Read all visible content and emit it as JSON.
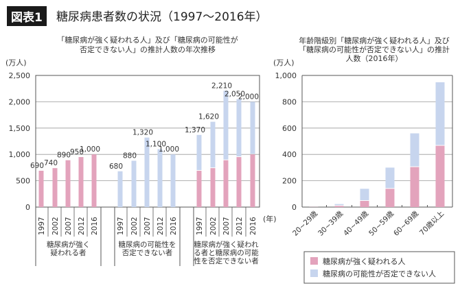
{
  "header": {
    "badge": "図表1",
    "title": "糖尿病患者数の状況（1997〜2016年）"
  },
  "colors": {
    "strong": "#e3a3bc",
    "possible": "#c7d5ee",
    "axis": "#555",
    "grid": "#999"
  },
  "chart_data": [
    {
      "type": "bar",
      "title_lines": [
        "「糖尿病が強く疑われる人」及び「糖尿病の可能性が",
        "否定できない人」の推計人数の年次推移"
      ],
      "ylabel": "(万人)",
      "xlabel": "(年)",
      "ylim": [
        0,
        2500
      ],
      "yticks": [
        "0",
        "500",
        "1,000",
        "1,500",
        "2,000",
        "2,500"
      ],
      "grid": true,
      "categories": [
        "1997",
        "2002",
        "2007",
        "2012",
        "2016"
      ],
      "groups": [
        {
          "label": "糖尿病が強く疑われる者",
          "label_lines": [
            "糖尿病が強く",
            "疑われる者"
          ],
          "series": [
            "strong"
          ],
          "values": [
            690,
            740,
            890,
            950,
            1000
          ],
          "data_labels": [
            "690",
            "740",
            "890",
            "950",
            "1,000"
          ]
        },
        {
          "label": "糖尿病の可能性を否定できない者",
          "label_lines": [
            "糖尿病の可能性を",
            "否定できない者"
          ],
          "series": [
            "possible"
          ],
          "values": [
            680,
            880,
            1320,
            1100,
            1000
          ],
          "data_labels": [
            "680",
            "880",
            "1,320",
            "1,100",
            "1,000"
          ]
        },
        {
          "label": "糖尿病が強く疑われる者と糖尿病の可能性を否定できない者",
          "label_lines": [
            "糖尿病が強く疑われ",
            "る者と糖尿病の可能",
            "性を否定できない者"
          ],
          "series": [
            "strong",
            "possible"
          ],
          "stacked_values": {
            "strong": [
              690,
              740,
              890,
              950,
              1000
            ],
            "possible": [
              680,
              880,
              1320,
              1100,
              1000
            ]
          },
          "data_labels": [
            "1,370",
            "1,620",
            "2,210",
            "2,050",
            "2,000"
          ]
        }
      ]
    },
    {
      "type": "bar",
      "stacked": true,
      "title_lines": [
        "年齢階級別「糖尿病が強く疑われる人」及び",
        "「糖尿病の可能性が否定できない人」の推計",
        "人数（2016年）"
      ],
      "ylabel": "(万人)",
      "ylim": [
        0,
        1000
      ],
      "yticks": [
        "0",
        "200",
        "400",
        "600",
        "800",
        "1,000"
      ],
      "grid": true,
      "categories": [
        "20~29歳",
        "30~39歳",
        "40~49歳",
        "50~59歳",
        "60~69歳",
        "70歳以上"
      ],
      "series": [
        {
          "name": "糖尿病が強く疑われる人",
          "key": "strong",
          "values": [
            1,
            9,
            47,
            139,
            304,
            466
          ]
        },
        {
          "name": "糖尿病の可能性が否定できない人",
          "key": "possible",
          "values": [
            1,
            14,
            92,
            161,
            256,
            482
          ]
        }
      ],
      "legend": "bottom"
    }
  ]
}
